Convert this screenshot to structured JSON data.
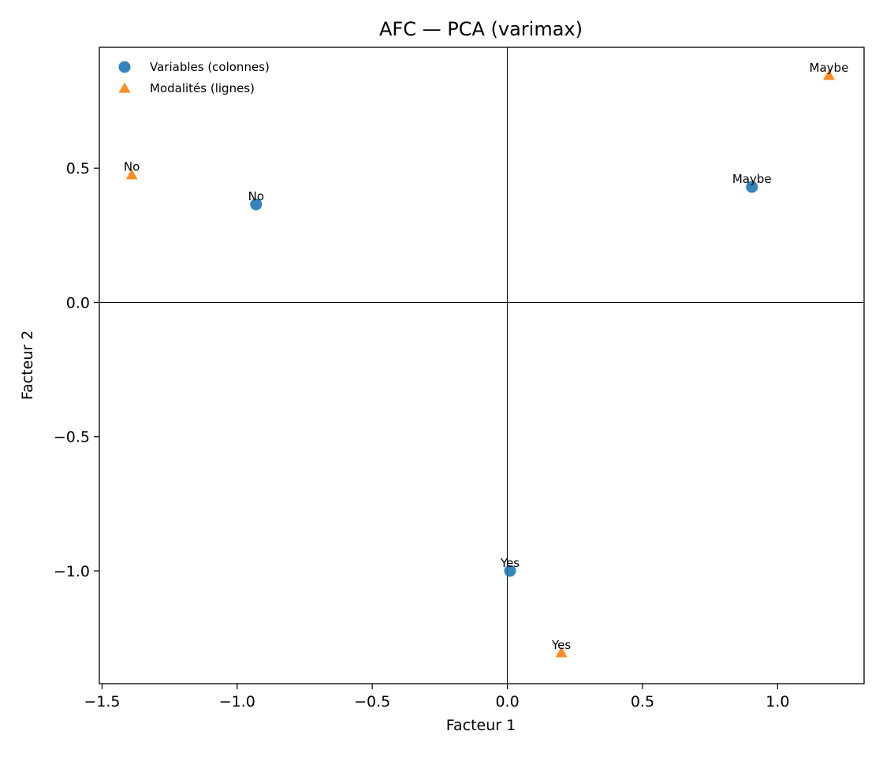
{
  "chart_data": {
    "type": "scatter",
    "title": "AFC — PCA (varimax)",
    "xlabel": "Facteur 1",
    "ylabel": "Facteur 2",
    "xlim": [
      -1.51,
      1.32
    ],
    "ylim": [
      -1.42,
      0.95
    ],
    "xticks": [
      -1.5,
      -1.0,
      -0.5,
      0.0,
      0.5,
      1.0
    ],
    "xtick_labels": [
      "−1.5",
      "−1.0",
      "−0.5",
      "0.0",
      "0.5",
      "1.0"
    ],
    "yticks": [
      -1.0,
      -0.5,
      0.0,
      0.5
    ],
    "ytick_labels": [
      "−1.0",
      "−0.5",
      "0.0",
      "0.5"
    ],
    "grid": false,
    "reference_lines": {
      "x": 0,
      "y": 0
    },
    "legend_position": "top-left",
    "series": [
      {
        "name": "Variables (colonnes)",
        "marker": "circle",
        "color": "#1f77b4",
        "points": [
          {
            "label": "No",
            "x": -0.93,
            "y": 0.365
          },
          {
            "label": "Maybe",
            "x": 0.905,
            "y": 0.43
          },
          {
            "label": "Yes",
            "x": 0.01,
            "y": -1.0
          }
        ]
      },
      {
        "name": "Modalités (lignes)",
        "marker": "triangle",
        "color": "#ff7f0e",
        "points": [
          {
            "label": "No",
            "x": -1.39,
            "y": 0.475
          },
          {
            "label": "Maybe",
            "x": 1.19,
            "y": 0.845
          },
          {
            "label": "Yes",
            "x": 0.2,
            "y": -1.305
          }
        ]
      }
    ]
  }
}
